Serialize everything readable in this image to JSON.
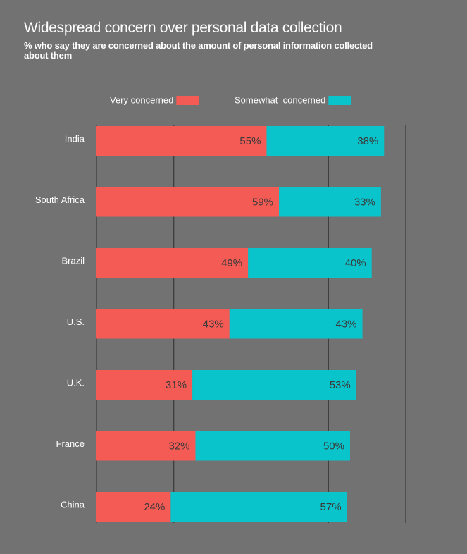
{
  "chart_data": {
    "type": "stacked-barh",
    "title": "Widespread concern over personal data collection",
    "subtitle": "% who say they are concerned about the amount of personal information collected about them",
    "categories": [
      "India",
      "South Africa",
      "Brazil",
      "U.S.",
      "U.K.",
      "France",
      "China"
    ],
    "series": [
      {
        "name": "Very concerned",
        "color": "#f45b55",
        "values": [
          55,
          59,
          49,
          43,
          31,
          32,
          24
        ],
        "value_labels": [
          "55%",
          "59%",
          "49%",
          "43%",
          "31%",
          "32%",
          "24%"
        ]
      },
      {
        "name": "Somewhat  concerned",
        "color": "#0ac4cb",
        "values": [
          38,
          33,
          40,
          43,
          53,
          50,
          57
        ],
        "value_labels": [
          "38%",
          "33%",
          "40%",
          "43%",
          "53%",
          "50%",
          "57%"
        ]
      }
    ],
    "xlim": [
      0,
      100
    ],
    "xticks": [
      0,
      25,
      50,
      75,
      100
    ],
    "grid": true,
    "legend": "top"
  }
}
